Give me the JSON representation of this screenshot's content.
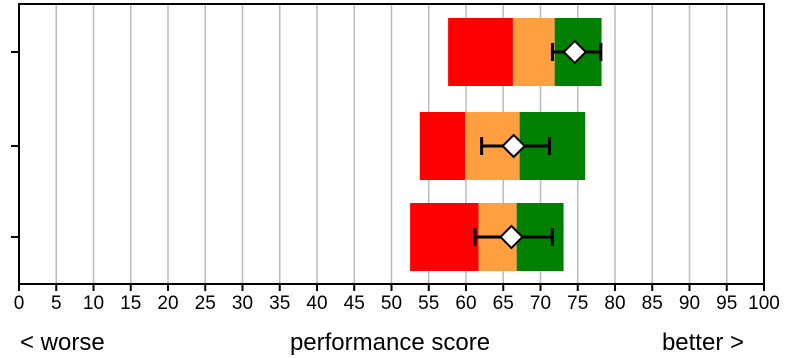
{
  "chart_data": {
    "type": "bullet",
    "xlim": [
      0,
      100
    ],
    "xticks": [
      0,
      5,
      10,
      15,
      20,
      25,
      30,
      35,
      40,
      45,
      50,
      55,
      60,
      65,
      70,
      75,
      80,
      85,
      90,
      95,
      100
    ],
    "grid": "vertical",
    "xlabel": "performance score",
    "left_label": "< worse",
    "right_label": "better >",
    "colors": {
      "low": "#ff0000",
      "mid": "#ff9f40",
      "high": "#008000",
      "marker": "#ffffff",
      "grid": "#bbbbbb"
    },
    "rows": [
      {
        "bands": [
          57.6,
          66.3,
          71.9,
          78.2
        ],
        "marker": 74.6,
        "error": [
          71.6,
          78.1
        ]
      },
      {
        "bands": [
          53.8,
          59.9,
          67.2,
          76.0
        ],
        "marker": 66.4,
        "error": [
          62.1,
          71.2
        ]
      },
      {
        "bands": [
          52.5,
          61.7,
          66.8,
          73.1
        ],
        "marker": 66.1,
        "error": [
          61.2,
          71.6
        ]
      }
    ]
  }
}
